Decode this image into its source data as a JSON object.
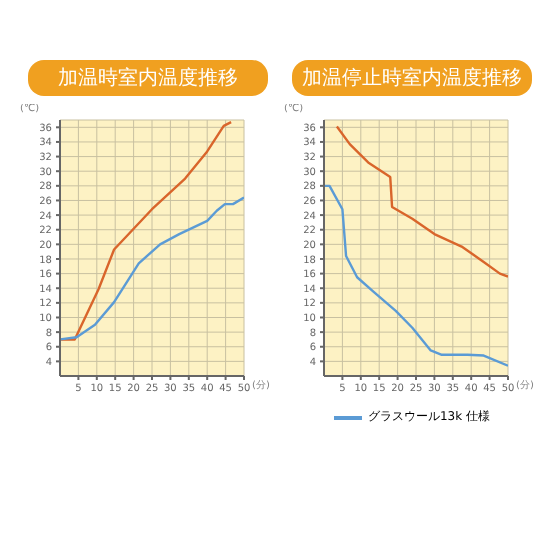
{
  "chart_data": [
    {
      "type": "line",
      "title": "加温時室内温度推移",
      "xlabel": "(分)",
      "ylabel": "(℃)",
      "xlim": [
        0,
        50
      ],
      "xticks": [
        5,
        10,
        15,
        20,
        25,
        30,
        35,
        40,
        45,
        50
      ],
      "ylim": [
        2,
        37
      ],
      "yticks": [
        4,
        6,
        8,
        10,
        12,
        14,
        16,
        18,
        20,
        22,
        24,
        26,
        28,
        30,
        32,
        34,
        36
      ],
      "grid": true,
      "legend": false,
      "marker": "none",
      "series": [
        {
          "color": "#d9652b",
          "x": [
            0,
            4,
            10.5,
            14.7,
            25,
            34,
            40,
            44.5,
            46.5
          ],
          "values": [
            7,
            7,
            13.9,
            19.3,
            24.8,
            29,
            32.7,
            36.2,
            36.7
          ]
        },
        {
          "color": "#5b9bd5",
          "x": [
            0,
            4.5,
            9.5,
            14.7,
            21.4,
            27.2,
            32.4,
            40,
            42.6,
            44.8,
            47,
            50
          ],
          "values": [
            7,
            7.3,
            9,
            12.1,
            17.4,
            20,
            21.4,
            23.2,
            24.6,
            25.5,
            25.5,
            26.4
          ]
        }
      ]
    },
    {
      "type": "line",
      "title": "加温停止時室内温度推移",
      "xlabel": "(分)",
      "ylabel": "(℃)",
      "xlim": [
        0,
        50
      ],
      "xticks": [
        5,
        10,
        15,
        20,
        25,
        30,
        35,
        40,
        45,
        50
      ],
      "ylim": [
        2,
        37
      ],
      "yticks": [
        4,
        6,
        8,
        10,
        12,
        14,
        16,
        18,
        20,
        22,
        24,
        26,
        28,
        30,
        32,
        34,
        36
      ],
      "grid": true,
      "legend": "bottom",
      "marker": "none",
      "series": [
        {
          "color": "#d9652b",
          "x": [
            3.5,
            7,
            12,
            18,
            18.5,
            24,
            30,
            37.4,
            43.4,
            47.8,
            50
          ],
          "values": [
            36.1,
            33.7,
            31.2,
            29.2,
            25.1,
            23.5,
            21.4,
            19.7,
            17.6,
            16,
            15.6
          ]
        },
        {
          "name": "グラスウール13k 仕様",
          "color": "#5b9bd5",
          "x": [
            0,
            1.5,
            5,
            6,
            9,
            13.5,
            19.5,
            24,
            29,
            32,
            39,
            43.4,
            50
          ],
          "values": [
            28,
            28,
            24.8,
            18.4,
            15.5,
            13.5,
            10.9,
            8.6,
            5.5,
            4.9,
            4.9,
            4.8,
            3.4
          ]
        }
      ]
    }
  ]
}
